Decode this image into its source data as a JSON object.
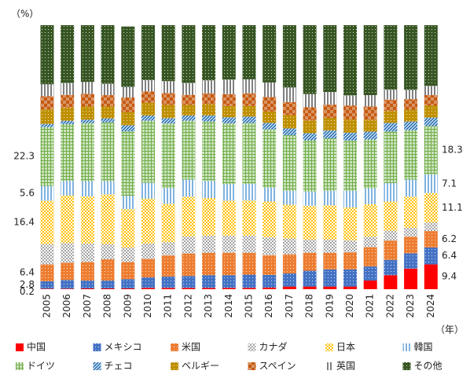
{
  "chart_data": {
    "type": "stacked-bar-100",
    "y_label": "（%）",
    "x_label": "（年）",
    "ylim": [
      0,
      100
    ],
    "categories": [
      "2005",
      "2006",
      "2007",
      "2008",
      "2009",
      "2010",
      "2011",
      "2012",
      "2013",
      "2014",
      "2015",
      "2016",
      "2017",
      "2018",
      "2019",
      "2020",
      "2021",
      "2022",
      "2023",
      "2024"
    ],
    "series": [
      {
        "name": "中国",
        "color": "#ff0000",
        "pattern": "solid",
        "values": [
          0.2,
          0.2,
          0.3,
          0.3,
          0.3,
          0.5,
          0.5,
          0.5,
          0.5,
          0.5,
          0.5,
          0.6,
          1.0,
          1.0,
          1.0,
          1.0,
          3.3,
          5.3,
          7.8,
          9.4
        ],
        "value_labels": [
          "0.2",
          null,
          null,
          null,
          null,
          null,
          null,
          null,
          null,
          null,
          null,
          null,
          null,
          null,
          null,
          null,
          null,
          null,
          null,
          "9.4"
        ]
      },
      {
        "name": "メキシコ",
        "color": "#4472c4",
        "pattern": "dots",
        "values": [
          2.8,
          3.3,
          3.0,
          3.0,
          3.5,
          4.0,
          4.3,
          4.5,
          4.8,
          4.8,
          5.0,
          4.8,
          5.0,
          6.0,
          6.5,
          6.5,
          5.3,
          5.8,
          5.8,
          6.4
        ],
        "value_labels": [
          "2.8",
          null,
          null,
          null,
          null,
          null,
          null,
          null,
          null,
          null,
          null,
          null,
          null,
          null,
          null,
          null,
          null,
          null,
          null,
          "6.4"
        ]
      },
      {
        "name": "米国",
        "color": "#ed7d31",
        "pattern": "dots",
        "values": [
          6.4,
          6.5,
          7.0,
          8.0,
          6.5,
          7.0,
          8.0,
          8.5,
          8.5,
          8.5,
          8.3,
          7.5,
          7.2,
          6.8,
          6.3,
          6.5,
          7.3,
          7.3,
          6.3,
          6.2
        ],
        "value_labels": [
          "6.4",
          null,
          null,
          null,
          null,
          null,
          null,
          null,
          null,
          null,
          null,
          null,
          null,
          null,
          null,
          null,
          null,
          null,
          null,
          "6.2"
        ]
      },
      {
        "name": "カナダ",
        "color": "#a5a5a5",
        "pattern": "checker",
        "values": [
          7.7,
          7.5,
          7.0,
          5.8,
          5.5,
          5.8,
          5.0,
          6.5,
          6.5,
          6.5,
          6.5,
          6.8,
          6.0,
          5.0,
          5.0,
          4.5,
          4.0,
          3.8,
          3.3,
          3.3
        ]
      },
      {
        "name": "日本",
        "color": "#ffc000",
        "pattern": "checker",
        "values": [
          16.4,
          18.0,
          17.8,
          18.8,
          14.5,
          17.0,
          14.5,
          15.0,
          14.2,
          13.2,
          13.3,
          13.5,
          12.8,
          12.8,
          13.0,
          12.5,
          12.3,
          11.0,
          11.8,
          11.1
        ],
        "value_labels": [
          "16.4",
          null,
          null,
          null,
          null,
          null,
          null,
          null,
          null,
          null,
          null,
          null,
          null,
          null,
          null,
          null,
          null,
          null,
          null,
          "11.1"
        ]
      },
      {
        "name": "韓国",
        "color": "#7fb3e0",
        "pattern": "vstripes",
        "values": [
          5.6,
          5.5,
          5.8,
          5.0,
          5.0,
          6.0,
          6.0,
          6.5,
          6.5,
          6.3,
          6.3,
          5.3,
          5.3,
          5.3,
          5.5,
          6.3,
          6.0,
          7.0,
          6.5,
          7.1
        ],
        "value_labels": [
          "5.6",
          null,
          null,
          null,
          null,
          null,
          null,
          null,
          null,
          null,
          null,
          null,
          null,
          null,
          null,
          null,
          null,
          null,
          null,
          "7.1"
        ]
      },
      {
        "name": "ドイツ",
        "color": "#70ad47",
        "pattern": "grid",
        "values": [
          22.3,
          21.5,
          22.0,
          22.3,
          24.5,
          23.5,
          24.5,
          22.3,
          22.5,
          23.0,
          23.0,
          22.0,
          21.0,
          19.5,
          19.8,
          19.0,
          18.5,
          19.5,
          18.7,
          18.3
        ],
        "value_labels": [
          "22.3",
          null,
          null,
          null,
          null,
          null,
          null,
          null,
          null,
          null,
          null,
          null,
          null,
          null,
          null,
          null,
          null,
          null,
          null,
          "18.3"
        ]
      },
      {
        "name": "チェコ",
        "color": "#2e75b6",
        "pattern": "hatch",
        "values": [
          1.2,
          1.3,
          1.3,
          1.5,
          2.3,
          2.0,
          2.0,
          2.0,
          2.3,
          2.3,
          2.5,
          2.5,
          2.6,
          2.7,
          3.0,
          3.0,
          3.0,
          3.3,
          3.3,
          3.2
        ]
      },
      {
        "name": "ベルギー",
        "color": "#bf9000",
        "pattern": "dots",
        "values": [
          5.5,
          5.0,
          5.0,
          4.5,
          5.0,
          4.8,
          5.0,
          4.0,
          4.3,
          4.3,
          4.0,
          4.3,
          5.0,
          4.8,
          4.8,
          5.0,
          4.5,
          4.5,
          4.5,
          4.5
        ]
      },
      {
        "name": "スペイン",
        "color": "#c55a11",
        "pattern": "checker-dark",
        "values": [
          5.0,
          4.8,
          4.8,
          4.3,
          5.5,
          4.3,
          4.5,
          3.8,
          4.0,
          4.5,
          4.8,
          5.5,
          5.0,
          5.0,
          5.0,
          5.3,
          5.0,
          4.3,
          4.0,
          4.0
        ]
      },
      {
        "name": "英国",
        "color": "#7f7f7f",
        "pattern": "vstripes",
        "values": [
          4.5,
          4.5,
          4.5,
          4.3,
          4.0,
          4.3,
          4.5,
          4.5,
          5.0,
          5.5,
          5.3,
          5.5,
          5.5,
          5.0,
          4.8,
          3.8,
          4.3,
          3.8,
          3.5,
          3.5
        ]
      },
      {
        "name": "その他",
        "color": "#375623",
        "pattern": "dots",
        "values": [
          22.4,
          21.9,
          21.5,
          22.2,
          22.9,
          20.8,
          21.2,
          21.9,
          20.9,
          20.6,
          20.5,
          21.7,
          23.6,
          26.1,
          25.3,
          26.6,
          26.5,
          24.4,
          24.5,
          23.0
        ]
      }
    ]
  }
}
